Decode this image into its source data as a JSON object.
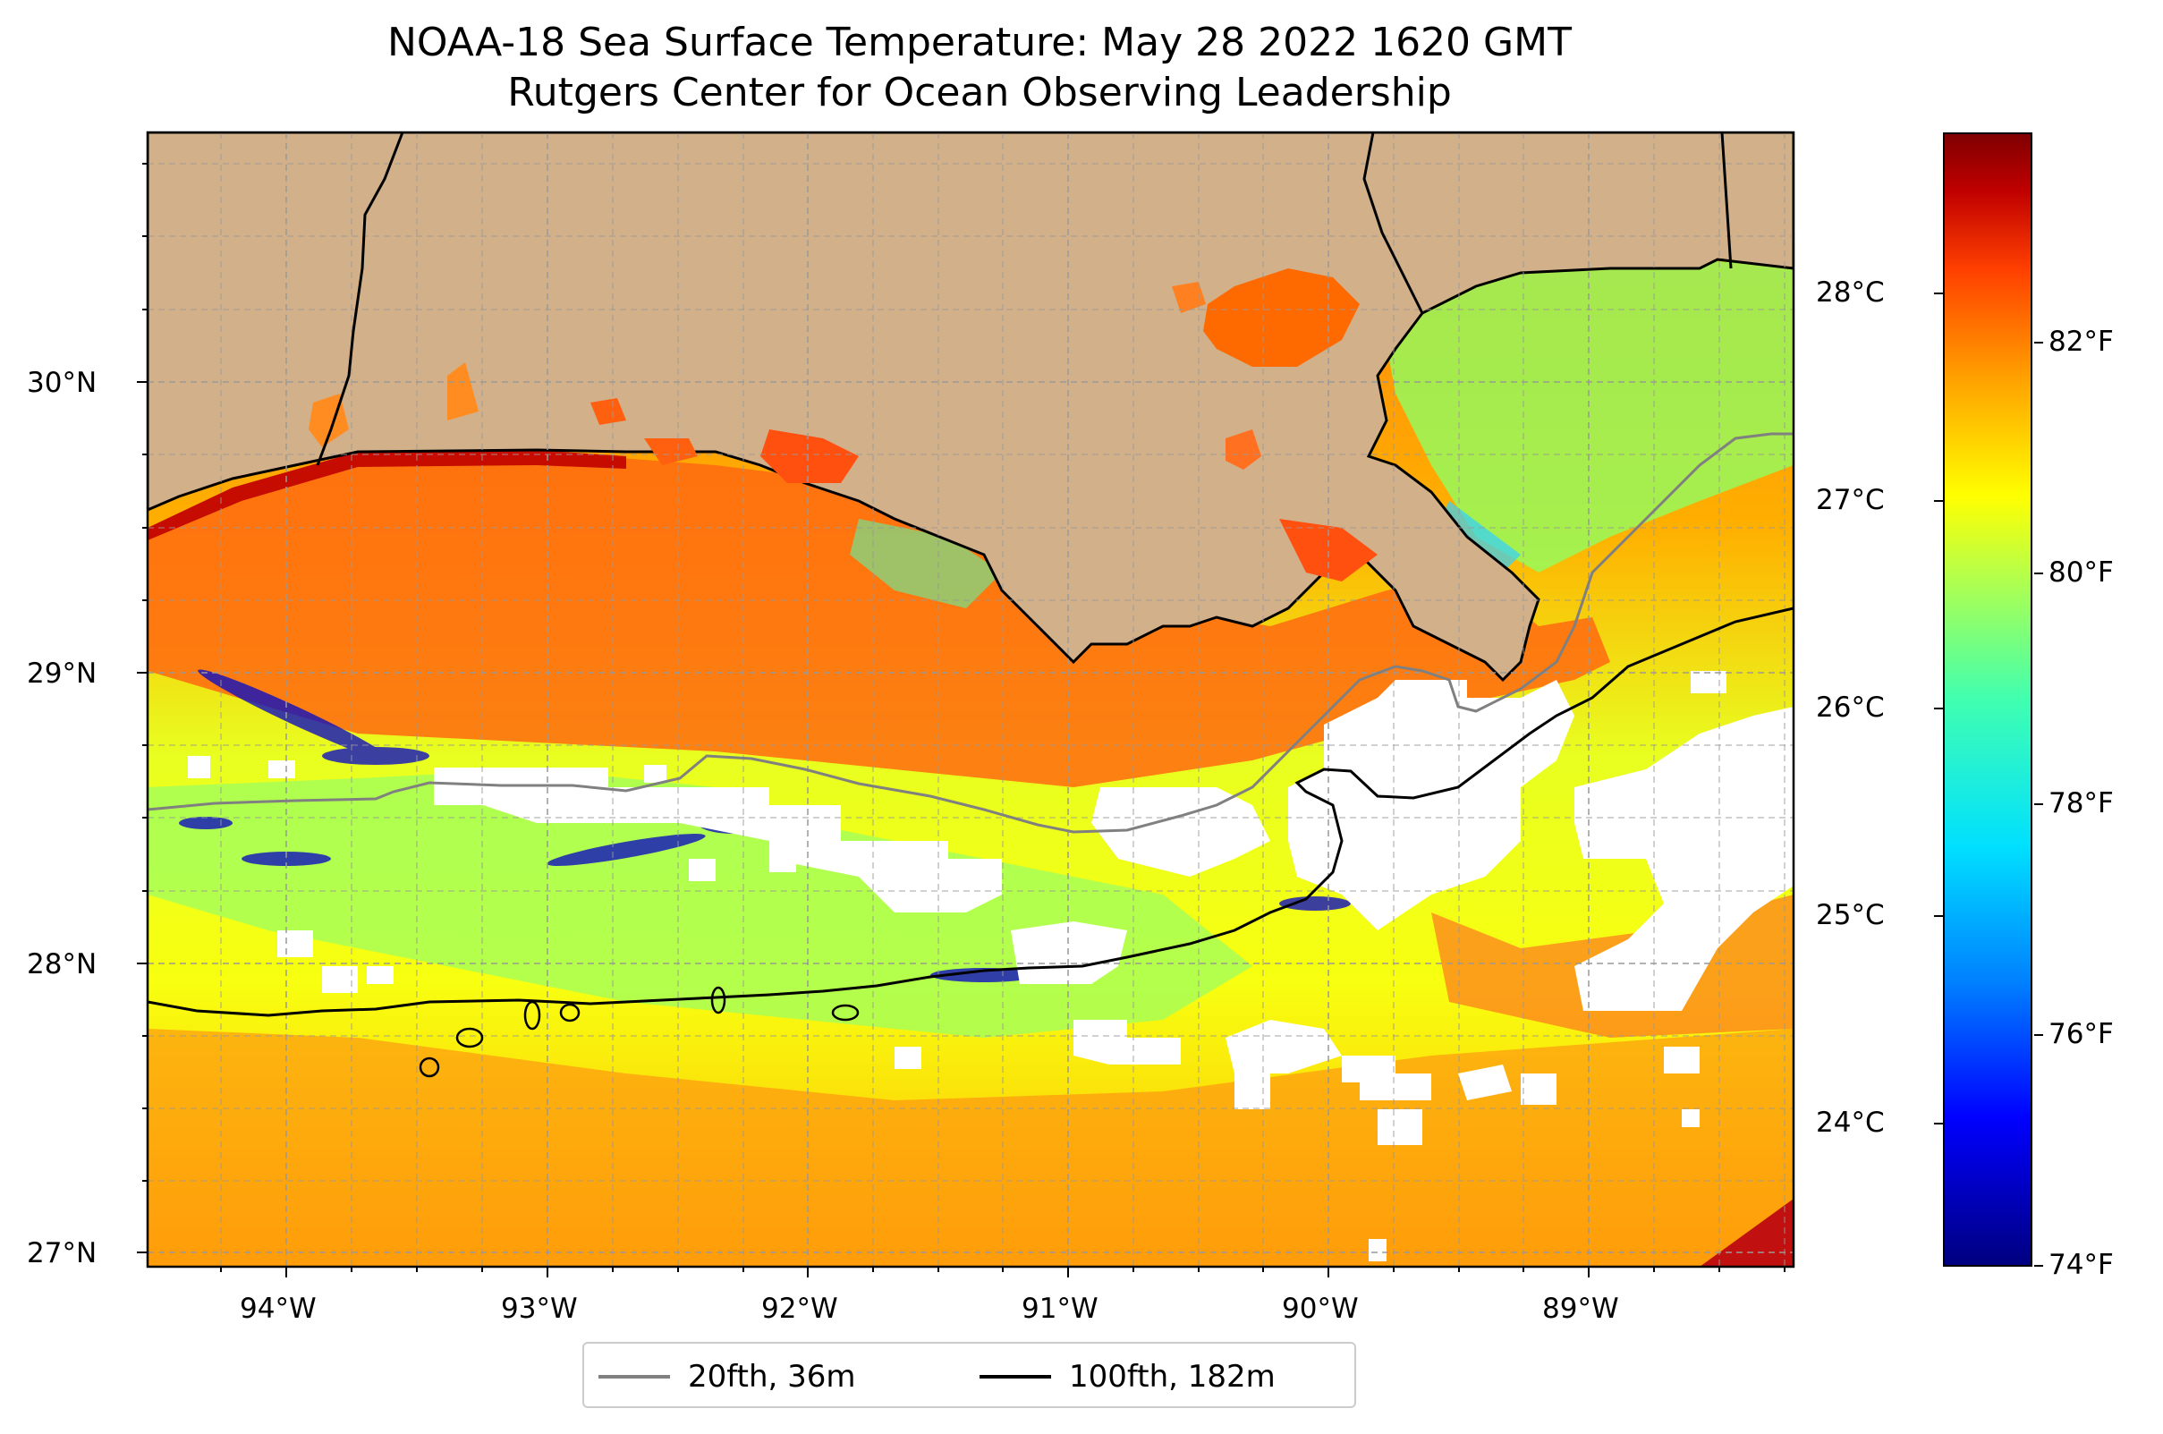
{
  "title_line1": "NOAA-18 Sea Surface Temperature: May 28 2022 1620 GMT",
  "title_line2": "Rutgers Center for Ocean Observing Leadership",
  "map": {
    "lon_range": [
      -94.55,
      -88.2
    ],
    "lat_range": [
      26.95,
      30.85
    ],
    "lat_ticks": [
      "30°N",
      "29°N",
      "28°N",
      "27°N"
    ],
    "lon_ticks": [
      "94°W",
      "93°W",
      "92°W",
      "91°W",
      "90°W",
      "89°W"
    ],
    "gridlines": true,
    "land_color": "#d2b08a",
    "cloud_color": "#ffffff"
  },
  "colorbar": {
    "celsius_labels": [
      "28°C",
      "27°C",
      "26°C",
      "25°C",
      "24°C"
    ],
    "fahrenheit_labels": [
      "82°F",
      "80°F",
      "78°F",
      "76°F",
      "74°F"
    ],
    "colormap": "jet"
  },
  "legend": {
    "items": [
      {
        "label": "20fth, 36m",
        "color": "#808080"
      },
      {
        "label": "100fth, 182m",
        "color": "#000000"
      }
    ]
  }
}
